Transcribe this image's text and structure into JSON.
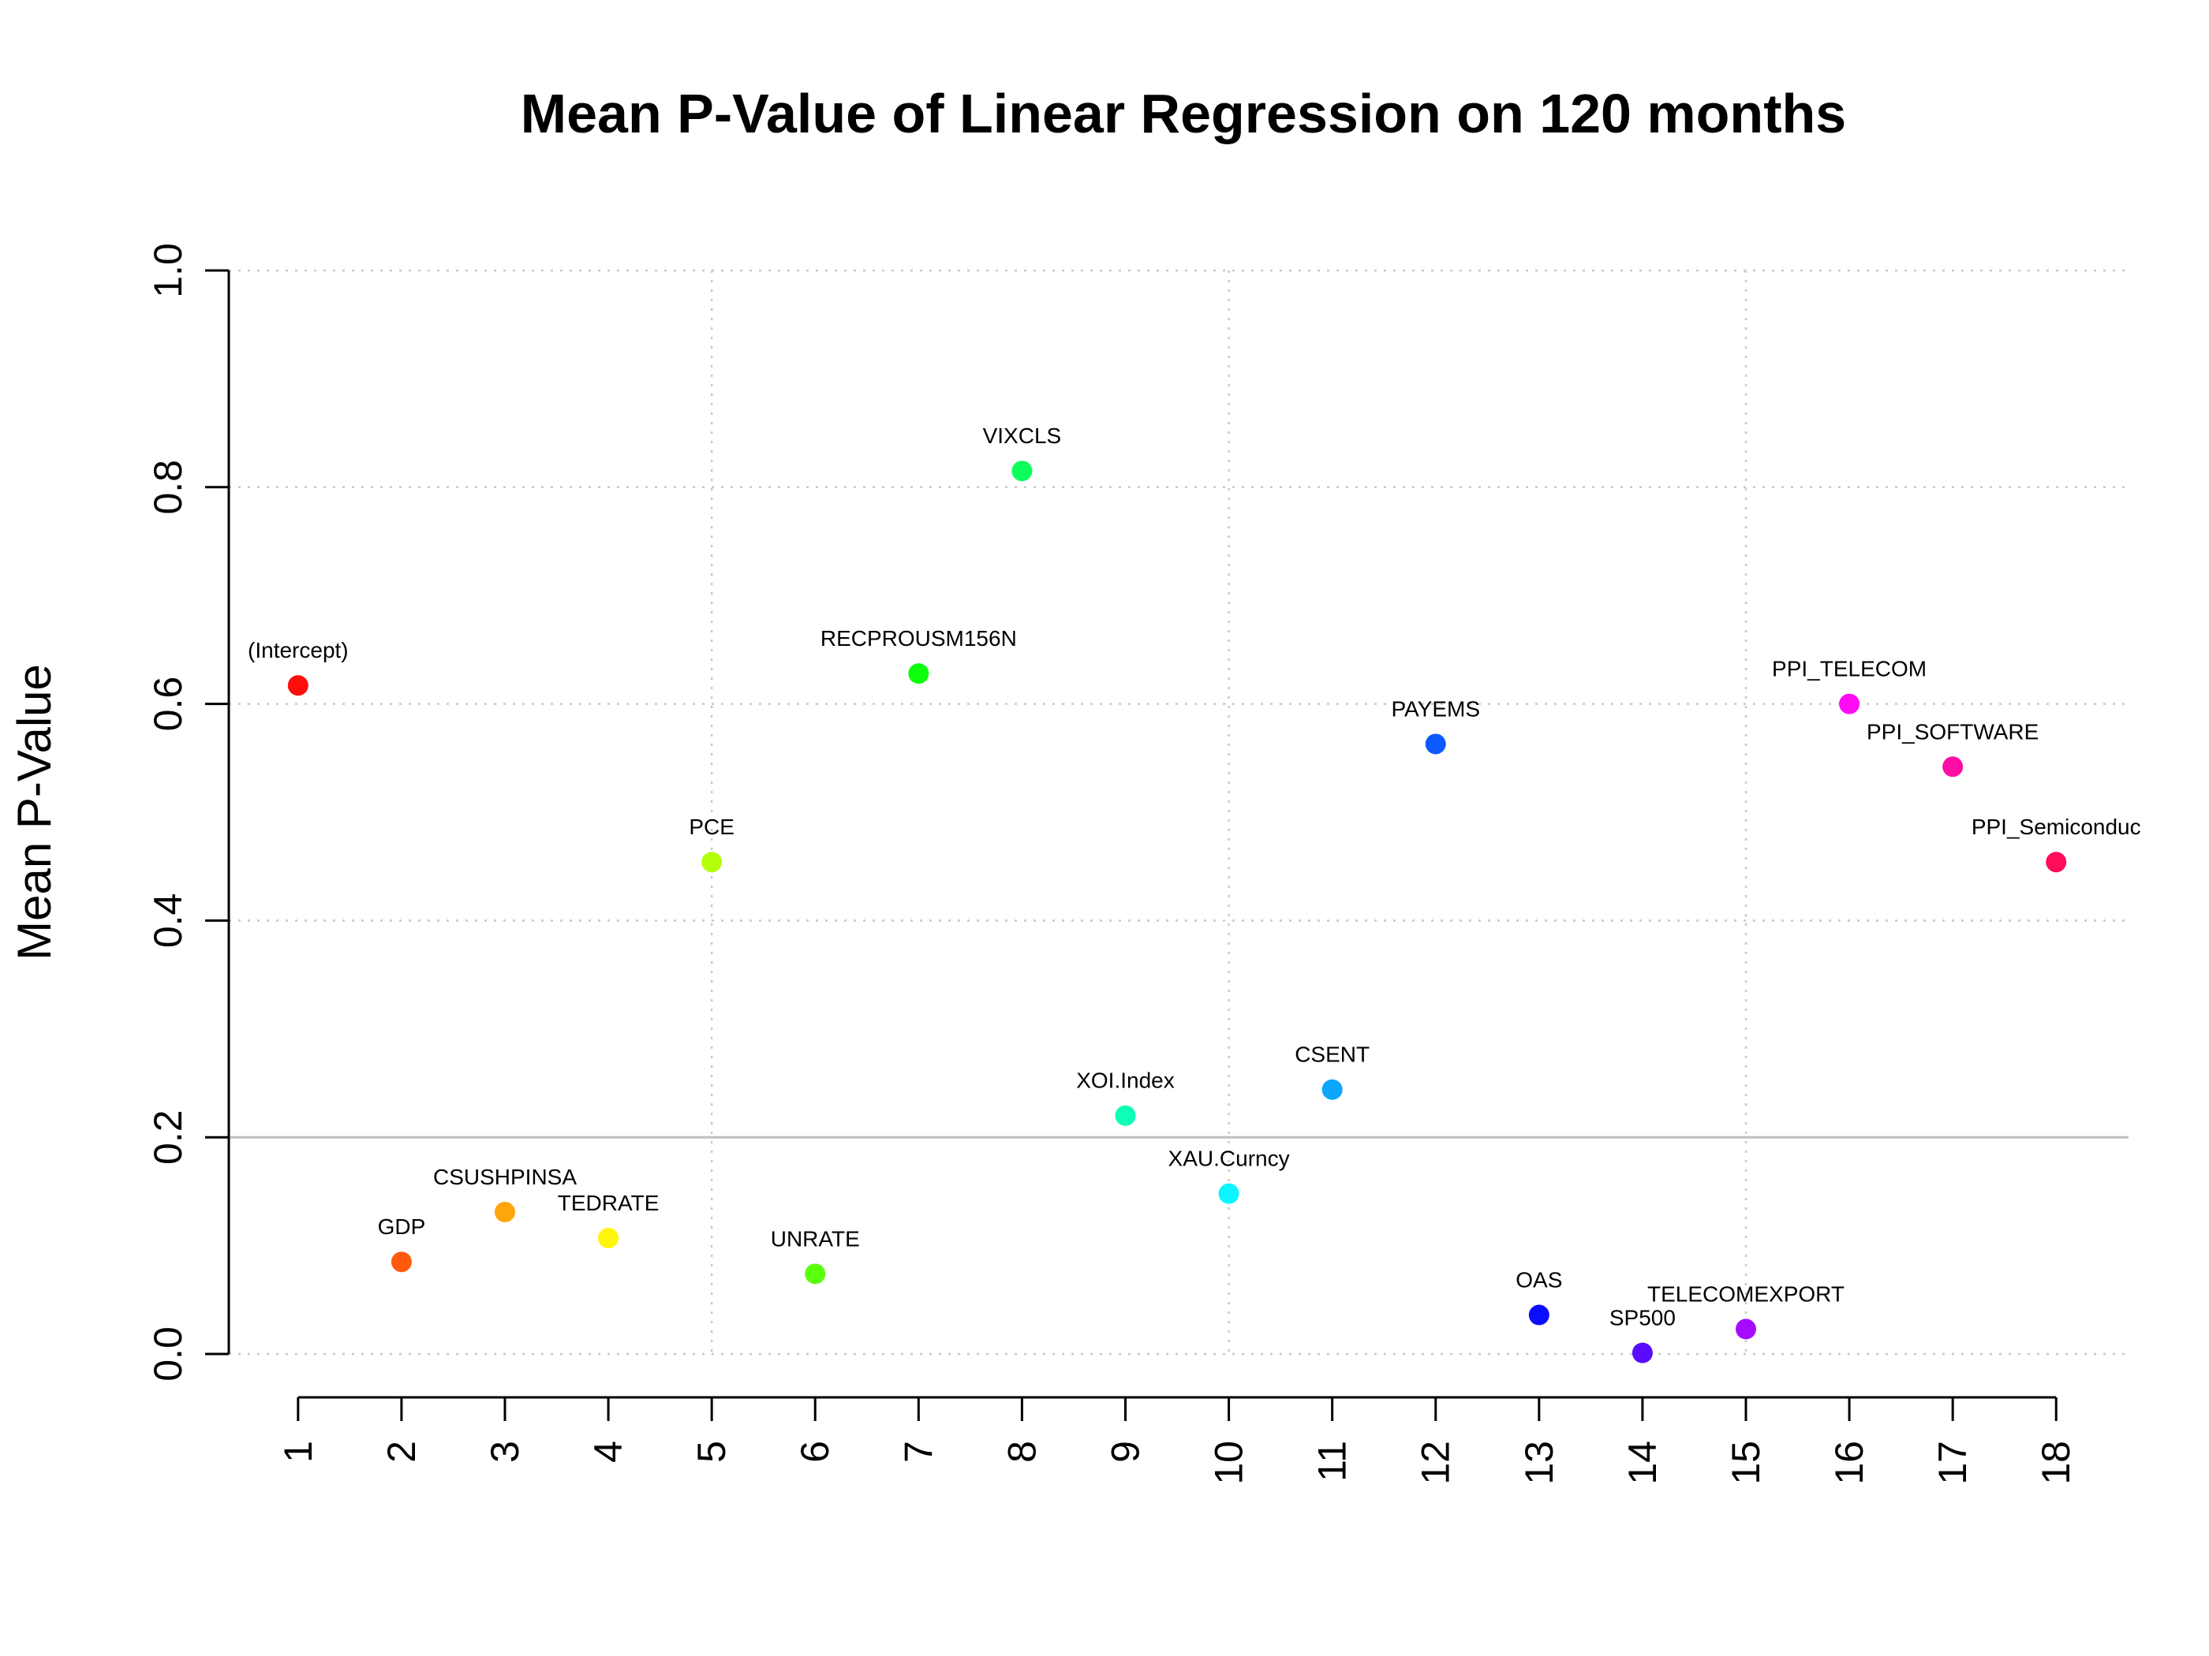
{
  "chart_data": {
    "type": "scatter",
    "title": "Mean P-Value of Linear Regression on 120 months",
    "xlabel": "",
    "ylabel": "Mean P-Value",
    "xlim": [
      0.33,
      18.7
    ],
    "ylim": [
      0,
      1.0
    ],
    "x_ticks": [
      1,
      2,
      3,
      4,
      5,
      6,
      7,
      8,
      9,
      10,
      11,
      12,
      13,
      14,
      15,
      16,
      17,
      18
    ],
    "y_ticks": [
      0.0,
      0.2,
      0.4,
      0.6,
      0.8,
      1.0
    ],
    "y_tick_labels": [
      "0.0",
      "0.2",
      "0.4",
      "0.6",
      "0.8",
      "1.0"
    ],
    "grid": true,
    "grid_x": [
      5,
      10,
      15
    ],
    "grid_y": [
      0.0,
      0.2,
      0.4,
      0.6,
      0.8,
      1.0
    ],
    "reference_line_y": 0.2,
    "grid_color": "#c8c8c8",
    "reference_line_color": "#bebebe",
    "points": [
      {
        "x": 1,
        "y": 0.617,
        "label": "(Intercept)",
        "color": "#ff0c0c"
      },
      {
        "x": 2,
        "y": 0.085,
        "label": "GDP",
        "color": "#ff5a0c"
      },
      {
        "x": 3,
        "y": 0.131,
        "label": "CSUSHPINSA",
        "color": "#ffa50c"
      },
      {
        "x": 4,
        "y": 0.107,
        "label": "TEDRATE",
        "color": "#fff50c"
      },
      {
        "x": 5,
        "y": 0.454,
        "label": "PCE",
        "color": "#b4ff0c"
      },
      {
        "x": 6,
        "y": 0.074,
        "label": "UNRATE",
        "color": "#5aff0c"
      },
      {
        "x": 7,
        "y": 0.628,
        "label": "RECPROUSM156N",
        "color": "#0cff0c"
      },
      {
        "x": 8,
        "y": 0.815,
        "label": "VIXCLS",
        "color": "#0cff5a"
      },
      {
        "x": 9,
        "y": 0.22,
        "label": "XOI.Index",
        "color": "#0cffb4"
      },
      {
        "x": 10,
        "y": 0.148,
        "label": "XAU.Curncy",
        "color": "#0cf5ff"
      },
      {
        "x": 11,
        "y": 0.244,
        "label": "CSENT",
        "color": "#0ca5ff"
      },
      {
        "x": 12,
        "y": 0.563,
        "label": "PAYEMS",
        "color": "#0c5aff"
      },
      {
        "x": 13,
        "y": 0.036,
        "label": "OAS",
        "color": "#0c0cff"
      },
      {
        "x": 14,
        "y": 0.001,
        "label": "SP500",
        "color": "#5a0cff"
      },
      {
        "x": 15,
        "y": 0.023,
        "label": "TELECOMEXPORT",
        "color": "#a50cff"
      },
      {
        "x": 16,
        "y": 0.6,
        "label": "PPI_TELECOM",
        "color": "#ff0cf5"
      },
      {
        "x": 17,
        "y": 0.542,
        "label": "PPI_SOFTWARE",
        "color": "#ff0ca5"
      },
      {
        "x": 18,
        "y": 0.454,
        "label": "PPI_Semiconduc",
        "color": "#ff0c5a"
      }
    ]
  }
}
